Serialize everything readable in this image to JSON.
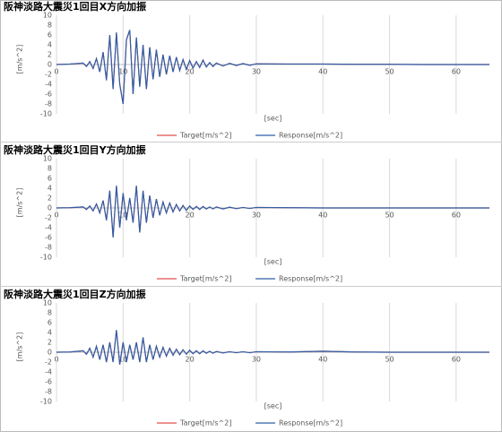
{
  "chart_data": [
    {
      "type": "line",
      "title": "阪神淡路大震災1回目X方向加振",
      "x_label": "[sec]",
      "y_label": "[m/s^2]",
      "x": [
        0,
        2,
        4,
        4.5,
        5,
        5.5,
        6,
        6.5,
        7,
        7.5,
        8,
        8.5,
        9,
        9.5,
        10,
        10.5,
        11,
        11.5,
        12,
        12.5,
        13,
        13.5,
        14,
        14.5,
        15,
        15.5,
        16,
        16.5,
        17,
        17.5,
        18,
        18.5,
        19,
        19.5,
        20,
        20.5,
        21,
        21.5,
        22,
        22.5,
        23,
        23.5,
        24,
        25,
        26,
        27,
        28,
        29,
        30,
        35,
        40,
        45,
        50,
        55,
        60,
        65
      ],
      "series": [
        {
          "name": "Target[m/s^2]",
          "color": "#e05050",
          "values": [
            0,
            0.1,
            0.3,
            -0.4,
            0.6,
            -0.8,
            1.2,
            -1.5,
            2.5,
            -3.2,
            6,
            -5,
            6.5,
            -4,
            -8,
            5,
            7,
            -6,
            5.5,
            -4.5,
            4,
            -5,
            3.5,
            -3,
            3,
            -2.5,
            2,
            -2,
            1.8,
            -1.5,
            1.5,
            -1.2,
            1,
            -1,
            0.8,
            -0.7,
            0.6,
            -0.6,
            0.9,
            -0.5,
            0.4,
            -0.4,
            0.3,
            -0.3,
            0.25,
            -0.2,
            0.2,
            -0.15,
            0.15,
            0.1,
            0.1,
            0.05,
            0.05,
            0,
            0,
            0
          ]
        },
        {
          "name": "Response[m/s^2]",
          "color": "#2e5fa8",
          "values": [
            0,
            0.1,
            0.3,
            -0.4,
            0.6,
            -0.8,
            1.2,
            -1.5,
            2.5,
            -3.2,
            6,
            -5,
            6.5,
            -4,
            -8,
            5,
            7,
            -6,
            5.5,
            -4.5,
            4,
            -5,
            3.5,
            -3,
            3,
            -2.5,
            2,
            -2,
            1.8,
            -1.5,
            1.5,
            -1.2,
            1,
            -1,
            0.8,
            -0.7,
            0.6,
            -0.6,
            0.9,
            -0.5,
            0.4,
            -0.4,
            0.3,
            -0.3,
            0.25,
            -0.2,
            0.2,
            -0.15,
            0.15,
            0.1,
            0.1,
            0.05,
            0.05,
            0,
            0,
            0
          ]
        }
      ],
      "xlim": [
        0,
        65
      ],
      "xticks": [
        0,
        10,
        20,
        30,
        40,
        50,
        60
      ],
      "ylim": [
        -10,
        10
      ],
      "yticks": [
        -10,
        -8,
        -6,
        -4,
        -2,
        0,
        2,
        4,
        6,
        8,
        10
      ],
      "grid": true,
      "legend": "bottom"
    },
    {
      "type": "line",
      "title": "阪神淡路大震災1回目Y方向加振",
      "x_label": "[sec]",
      "y_label": "[m/s^2]",
      "x": [
        0,
        2,
        4,
        4.5,
        5,
        5.5,
        6,
        6.5,
        7,
        7.5,
        8,
        8.5,
        9,
        9.5,
        10,
        10.5,
        11,
        11.5,
        12,
        12.5,
        13,
        13.5,
        14,
        14.5,
        15,
        15.5,
        16,
        16.5,
        17,
        17.5,
        18,
        18.5,
        19,
        19.5,
        20,
        20.5,
        21,
        21.5,
        22,
        22.5,
        23,
        23.5,
        24,
        25,
        26,
        27,
        28,
        29,
        30,
        35,
        40,
        45,
        50,
        55,
        60,
        65
      ],
      "series": [
        {
          "name": "Target[m/s^2]",
          "color": "#e05050",
          "values": [
            0,
            0.05,
            0.2,
            -0.3,
            0.4,
            -0.6,
            0.8,
            -1,
            1.5,
            -2.5,
            3.5,
            -6,
            4.5,
            -4,
            3,
            -2.5,
            2,
            -3,
            4.5,
            -5,
            3.5,
            -3,
            2.5,
            -2,
            1.8,
            -1.5,
            1.2,
            -1,
            1,
            -0.8,
            0.7,
            -0.6,
            0.5,
            -0.5,
            0.4,
            -0.3,
            0.3,
            -0.3,
            0.3,
            -0.2,
            0.2,
            -0.2,
            0.2,
            -0.2,
            0.15,
            -0.15,
            0.1,
            -0.1,
            0.1,
            0.05,
            0,
            0,
            0,
            0,
            0,
            0
          ]
        },
        {
          "name": "Response[m/s^2]",
          "color": "#2e5fa8",
          "values": [
            0,
            0.05,
            0.2,
            -0.3,
            0.4,
            -0.6,
            0.8,
            -1,
            1.5,
            -2.5,
            3.5,
            -6,
            4.5,
            -4,
            3,
            -2.5,
            2,
            -3,
            4.5,
            -5,
            3.5,
            -3,
            2.5,
            -2,
            1.8,
            -1.5,
            1.2,
            -1,
            1,
            -0.8,
            0.7,
            -0.6,
            0.5,
            -0.5,
            0.4,
            -0.3,
            0.3,
            -0.3,
            0.3,
            -0.2,
            0.2,
            -0.2,
            0.2,
            -0.2,
            0.15,
            -0.15,
            0.1,
            -0.1,
            0.1,
            0.05,
            0,
            0,
            0,
            0,
            0,
            0
          ]
        }
      ],
      "xlim": [
        0,
        65
      ],
      "xticks": [
        0,
        10,
        20,
        30,
        40,
        50,
        60
      ],
      "ylim": [
        -10,
        10
      ],
      "yticks": [
        -10,
        -8,
        -6,
        -4,
        -2,
        0,
        2,
        4,
        6,
        8,
        10
      ],
      "grid": true,
      "legend": "bottom"
    },
    {
      "type": "line",
      "title": "阪神淡路大震災1回目Z方向加振",
      "x_label": "[sec]",
      "y_label": "[m/s^2]",
      "x": [
        0,
        2,
        4,
        4.5,
        5,
        5.5,
        6,
        6.5,
        7,
        7.5,
        8,
        8.5,
        9,
        9.5,
        10,
        10.5,
        11,
        11.5,
        12,
        12.5,
        13,
        13.5,
        14,
        14.5,
        15,
        15.5,
        16,
        16.5,
        17,
        17.5,
        18,
        18.5,
        19,
        19.5,
        20,
        20.5,
        21,
        21.5,
        22,
        22.5,
        23,
        23.5,
        24,
        25,
        26,
        27,
        28,
        29,
        30,
        35,
        40,
        45,
        50,
        55,
        60,
        65
      ],
      "series": [
        {
          "name": "Target[m/s^2]",
          "color": "#e05050",
          "values": [
            0,
            0.05,
            0.3,
            -0.4,
            0.8,
            -1,
            1.2,
            -1.5,
            1.5,
            -2,
            2,
            -2,
            4.5,
            -2.5,
            2,
            -2,
            1.5,
            -1.5,
            2,
            -2,
            3,
            -2,
            1.5,
            -1.5,
            1.2,
            -1,
            1,
            -0.8,
            0.8,
            -0.6,
            0.6,
            -0.5,
            0.5,
            -0.4,
            0.4,
            -0.3,
            0.3,
            -0.3,
            0.3,
            -0.2,
            0.2,
            -0.2,
            0.15,
            -0.15,
            0.1,
            -0.1,
            0.1,
            -0.1,
            0.1,
            0.05,
            0.2,
            0.05,
            0,
            0,
            0,
            0
          ]
        },
        {
          "name": "Response[m/s^2]",
          "color": "#2e5fa8",
          "values": [
            0,
            0.05,
            0.3,
            -0.4,
            0.8,
            -1,
            1.2,
            -1.5,
            1.5,
            -2,
            2,
            -2,
            4.5,
            -2.5,
            2,
            -2,
            1.5,
            -1.5,
            2,
            -2,
            3,
            -2,
            1.5,
            -1.5,
            1.2,
            -1,
            1,
            -0.8,
            0.8,
            -0.6,
            0.6,
            -0.5,
            0.5,
            -0.4,
            0.4,
            -0.3,
            0.3,
            -0.3,
            0.3,
            -0.2,
            0.2,
            -0.2,
            0.15,
            -0.15,
            0.1,
            -0.1,
            0.1,
            -0.1,
            0.1,
            0.05,
            0.2,
            0.05,
            0,
            0,
            0,
            0
          ]
        }
      ],
      "xlim": [
        0,
        65
      ],
      "xticks": [
        0,
        10,
        20,
        30,
        40,
        50,
        60
      ],
      "ylim": [
        -10,
        10
      ],
      "yticks": [
        -10,
        -8,
        -6,
        -4,
        -2,
        0,
        2,
        4,
        6,
        8,
        10
      ],
      "grid": true,
      "legend": "bottom"
    }
  ]
}
